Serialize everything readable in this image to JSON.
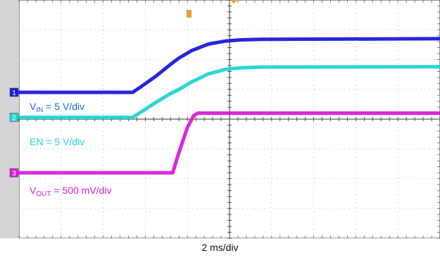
{
  "chart_data": {
    "type": "line",
    "title": "",
    "xlabel": "2 ms/div",
    "ylabel": "",
    "x_divisions": 10,
    "y_divisions": 8,
    "grid": true,
    "series": [
      {
        "id": "vin",
        "marker": "1",
        "label_main": "V",
        "label_sub": "IN",
        "label_rest": " = 5 V/div",
        "color": "#1a1adc",
        "label_color": "#1a6ad8",
        "points": [
          [
            0,
            4.9
          ],
          [
            5.4,
            4.9
          ],
          [
            5.8,
            5.09
          ],
          [
            6.5,
            5.44
          ],
          [
            7.2,
            5.84
          ],
          [
            7.6,
            6.05
          ],
          [
            8.2,
            6.3
          ],
          [
            9.0,
            6.52
          ],
          [
            9.8,
            6.62
          ],
          [
            10.5,
            6.66
          ],
          [
            11.5,
            6.68
          ],
          [
            20.0,
            6.7
          ]
        ]
      },
      {
        "id": "en",
        "marker": "2",
        "label_text": "EN = 5 V/div",
        "color": "#22d4d4",
        "label_color": "#22d4d4",
        "points": [
          [
            0,
            4.06
          ],
          [
            5.4,
            4.06
          ],
          [
            5.8,
            4.24
          ],
          [
            6.5,
            4.56
          ],
          [
            7.2,
            4.86
          ],
          [
            7.6,
            5.0
          ],
          [
            8.2,
            5.25
          ],
          [
            9.0,
            5.52
          ],
          [
            9.8,
            5.67
          ],
          [
            10.5,
            5.72
          ],
          [
            11.5,
            5.75
          ],
          [
            20.0,
            5.76
          ]
        ]
      },
      {
        "id": "vout",
        "marker": "3",
        "label_main": "V",
        "label_sub": "OUT",
        "label_rest": " = 500 mV/div",
        "color": "#d81ed8",
        "label_color": "#d81ed8",
        "points": [
          [
            0,
            2.2
          ],
          [
            7.3,
            2.2
          ],
          [
            7.6,
            2.88
          ],
          [
            8.0,
            3.72
          ],
          [
            8.3,
            4.12
          ],
          [
            8.5,
            4.2
          ],
          [
            20.0,
            4.2
          ]
        ]
      }
    ]
  }
}
